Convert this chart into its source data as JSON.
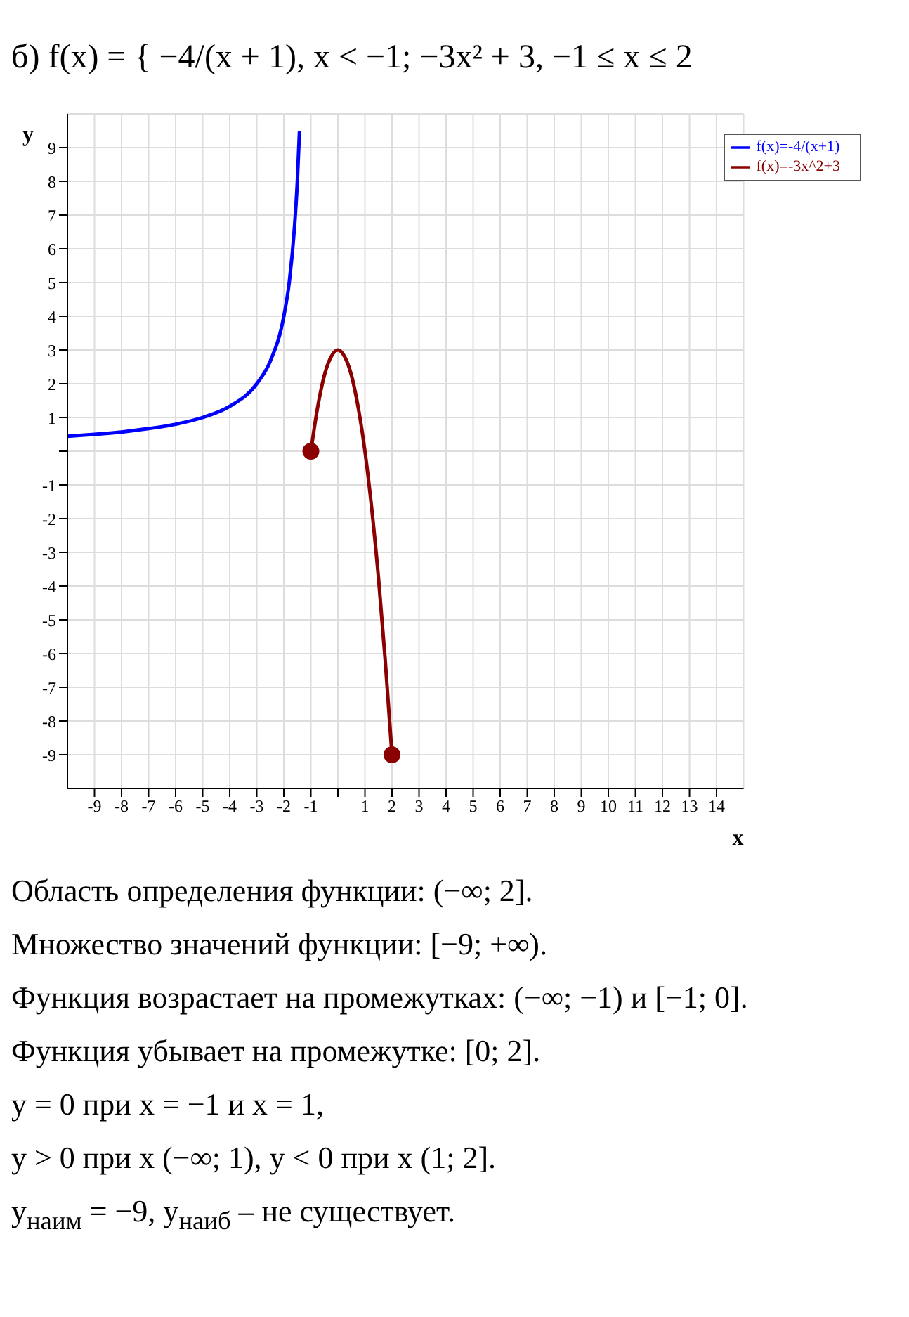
{
  "chart_data": {
    "type": "line",
    "title": "б) f(x) = { −4/(x + 1), x < −1; −3x² + 3, −1 ≤ x ≤ 2",
    "xlabel": "x",
    "ylabel": "y",
    "xlim": [
      -10,
      15
    ],
    "ylim": [
      -10,
      10
    ],
    "xticks": [
      -9,
      -8,
      -7,
      -6,
      -5,
      -4,
      -3,
      -2,
      -1,
      {
        "value": 0,
        "label": null
      },
      1,
      2,
      3,
      4,
      5,
      6,
      7,
      8,
      9,
      10,
      11,
      12,
      13,
      14
    ],
    "yticks": [
      -9,
      -8,
      -7,
      -6,
      -5,
      -4,
      -3,
      -2,
      -1,
      {
        "value": 0,
        "label": null
      },
      1,
      2,
      3,
      4,
      5,
      6,
      7,
      8,
      9
    ],
    "grid": true,
    "legend": "top right",
    "marker": "none",
    "line_style": "solid",
    "series": [
      {
        "name": "f(x)=-4/(x+1)",
        "color": "#0000ff",
        "x": [
          -10,
          -9,
          -8,
          -7,
          -6,
          -5,
          -4,
          -3,
          -2.5,
          -2,
          -1.8,
          -1.6,
          -1.5,
          -1.42
        ],
        "values": [
          0.44,
          0.5,
          0.57,
          0.67,
          0.8,
          1,
          1.33,
          2,
          2.67,
          4,
          5,
          6.7,
          8,
          9.5
        ]
      },
      {
        "name": "f(x)=-3x^2+3",
        "color": "#8b0000",
        "x": [
          -1,
          -0.75,
          -0.5,
          -0.25,
          0,
          0.25,
          0.5,
          0.75,
          1,
          1.25,
          1.5,
          1.75,
          2
        ],
        "values": [
          0,
          1.3,
          2.25,
          2.8,
          3,
          2.8,
          2.25,
          1.3,
          0,
          -1.7,
          -3.75,
          -6.2,
          -9
        ]
      },
      {
        "type": "scatter",
        "marker": "circle",
        "color": "#8b0000",
        "x": [
          -1,
          2
        ],
        "values": [
          0,
          -9
        ]
      }
    ],
    "annotations": [
      "Область определения функции: (−∞; 2].",
      "Множество значений функции: [−9; +∞).",
      "Функция возрастает на промежутках: (−∞; −1) и [−1; 0].",
      "Функция убывает на промежутке: [0; 2].",
      "y = 0 при x = −1 и x = 1,",
      "y > 0 при x (−∞; 1),     y < 0 при x (1; 2].",
      "y$_{наим}$ = −9,     y$_{наиб}$ – не существует."
    ]
  }
}
